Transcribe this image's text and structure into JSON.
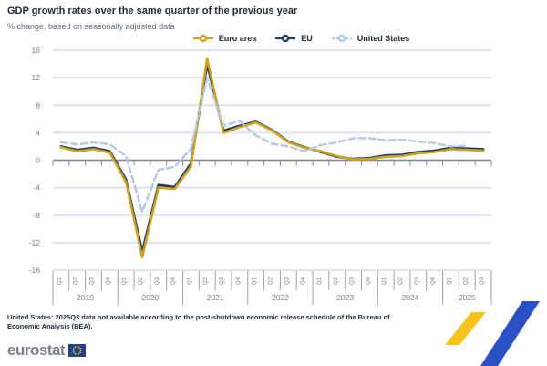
{
  "header": {
    "title": "GDP growth rates over the same quarter of the previous year",
    "subtitle": "% change, based on seasonally adjusted data"
  },
  "chart_data": {
    "type": "line",
    "title": "GDP growth rates over the same quarter of the previous year",
    "subtitle": "% change, based on seasonally adjusted data",
    "ylabel": "% change",
    "ylim": [
      -16,
      16
    ],
    "grid": true,
    "legend_position": "top",
    "yticks": [
      "16",
      "12",
      "8",
      "4",
      "0",
      "-4",
      "-8",
      "-12",
      "-16"
    ],
    "ytick_values": [
      16,
      12,
      8,
      4,
      0,
      -4,
      -8,
      -12,
      -16
    ],
    "years": [
      {
        "label": "2019",
        "quarters": [
          "Q1",
          "Q2",
          "Q3",
          "Q4"
        ]
      },
      {
        "label": "2020",
        "quarters": [
          "Q1",
          "Q2",
          "Q3",
          "Q4"
        ]
      },
      {
        "label": "2021",
        "quarters": [
          "Q1",
          "Q2",
          "Q3",
          "Q4"
        ]
      },
      {
        "label": "2022",
        "quarters": [
          "Q1",
          "Q2",
          "Q3",
          "Q4"
        ]
      },
      {
        "label": "2023",
        "quarters": [
          "Q1",
          "Q2",
          "Q3",
          "Q4"
        ]
      },
      {
        "label": "2024",
        "quarters": [
          "Q1",
          "Q2",
          "Q3",
          "Q4"
        ]
      },
      {
        "label": "2025",
        "quarters": [
          "Q1",
          "Q2",
          "Q3"
        ]
      }
    ],
    "series": [
      {
        "name": "EU",
        "color": "#1d3c6d",
        "dash": null,
        "values": [
          2.0,
          1.5,
          1.8,
          1.3,
          -2.8,
          -13.3,
          -3.6,
          -3.9,
          -0.5,
          13.9,
          4.3,
          5.0,
          5.6,
          4.4,
          2.7,
          1.9,
          1.2,
          0.5,
          0.2,
          0.3,
          0.7,
          0.8,
          1.2,
          1.4,
          1.8,
          1.7,
          1.6
        ]
      },
      {
        "name": "Euro area",
        "color": "#cfa21d",
        "dash": null,
        "values": [
          1.9,
          1.3,
          1.6,
          1.1,
          -3.2,
          -14.1,
          -4.0,
          -4.2,
          -0.9,
          14.8,
          4.0,
          4.8,
          5.5,
          4.3,
          2.6,
          1.8,
          1.3,
          0.6,
          0.1,
          0.2,
          0.5,
          0.6,
          1.0,
          1.2,
          1.6,
          1.5,
          1.4
        ]
      },
      {
        "name": "United States",
        "color": "#b5c7e9",
        "dash": [
          7,
          4
        ],
        "values": [
          2.6,
          2.3,
          2.6,
          2.3,
          0.6,
          -7.5,
          -1.4,
          -1.0,
          1.7,
          11.9,
          5.0,
          5.7,
          3.6,
          2.4,
          2.0,
          1.3,
          2.2,
          2.6,
          3.2,
          3.2,
          2.9,
          3.0,
          2.7,
          2.5,
          2.0,
          2.1,
          null
        ]
      }
    ],
    "legend_order": [
      1,
      0,
      2
    ]
  },
  "footnote": {
    "line1": "United States: 2025Q3 data not available according to the post-shutdown economic release schedule of the Bureau of",
    "line2": "Economic Analysis (BEA)."
  },
  "footer": {
    "logo_text": "eurostat"
  },
  "branding": {
    "axis_gray": "#88888f",
    "grid_color": "#dde4ee",
    "tick_label_gray": "#7a8190",
    "ribbon_yellow": "#f8c21c",
    "ribbon_blue": "#2b50c6",
    "eu_flag_blue": "#24418c",
    "eu_star_yellow": "#ffcc00"
  }
}
